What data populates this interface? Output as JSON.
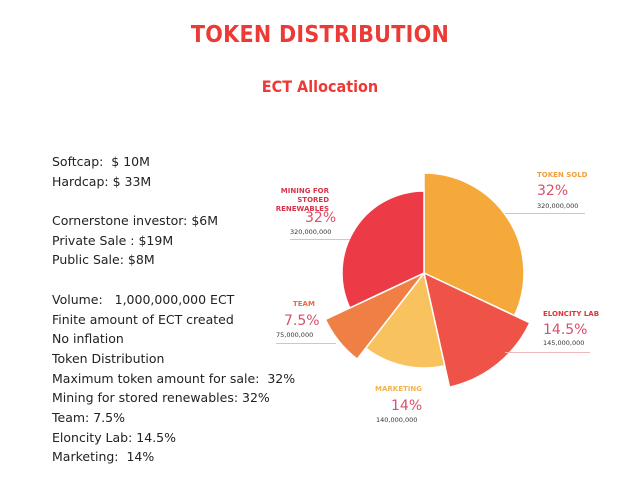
{
  "header": {
    "title": "TOKEN DISTRIBUTION",
    "subtitle": "ECT Allocation"
  },
  "info": {
    "softcap": "Softcap:  $ 10M",
    "hardcap": "Hardcap: $ 33M",
    "cornerstone": "Cornerstone investor: $6M",
    "private_sale": "Private Sale : $19M",
    "public_sale": "Public Sale: $8M",
    "volume": "Volume:   1,000,000,000 ECT",
    "finite": "Finite amount of ECT created",
    "no_inflation": "No inflation",
    "token_distribution": "Token Distribution",
    "max_sale": "Maximum token amount for sale:  32%",
    "mining": "Mining for stored renewables: 32%",
    "team": "Team: 7.5%",
    "eloncity": "Eloncity Lab: 14.5%",
    "marketing": "Marketing:  14%"
  },
  "chart_data": {
    "type": "pie",
    "title": "ECT Allocation",
    "slices": [
      {
        "label": "TOKEN SOLD",
        "value": 32,
        "pct_label": "32%",
        "amount": "320,000,000",
        "color": "#f6a93b"
      },
      {
        "label": "ELONCITY LAB",
        "value": 14.5,
        "pct_label": "14.5%",
        "amount": "145,000,000",
        "color": "#ef5348"
      },
      {
        "label": "MARKETING",
        "value": 14,
        "pct_label": "14%",
        "amount": "140,000,000",
        "color": "#f8c35f"
      },
      {
        "label": "TEAM",
        "value": 7.5,
        "pct_label": "7.5%",
        "amount": "75,000,000",
        "color": "#f07f45"
      },
      {
        "label": "MINING FOR STORED RENEWABLES",
        "value": 32,
        "pct_label": "32%",
        "amount": "320,000,000",
        "color": "#ec3b46"
      }
    ]
  }
}
